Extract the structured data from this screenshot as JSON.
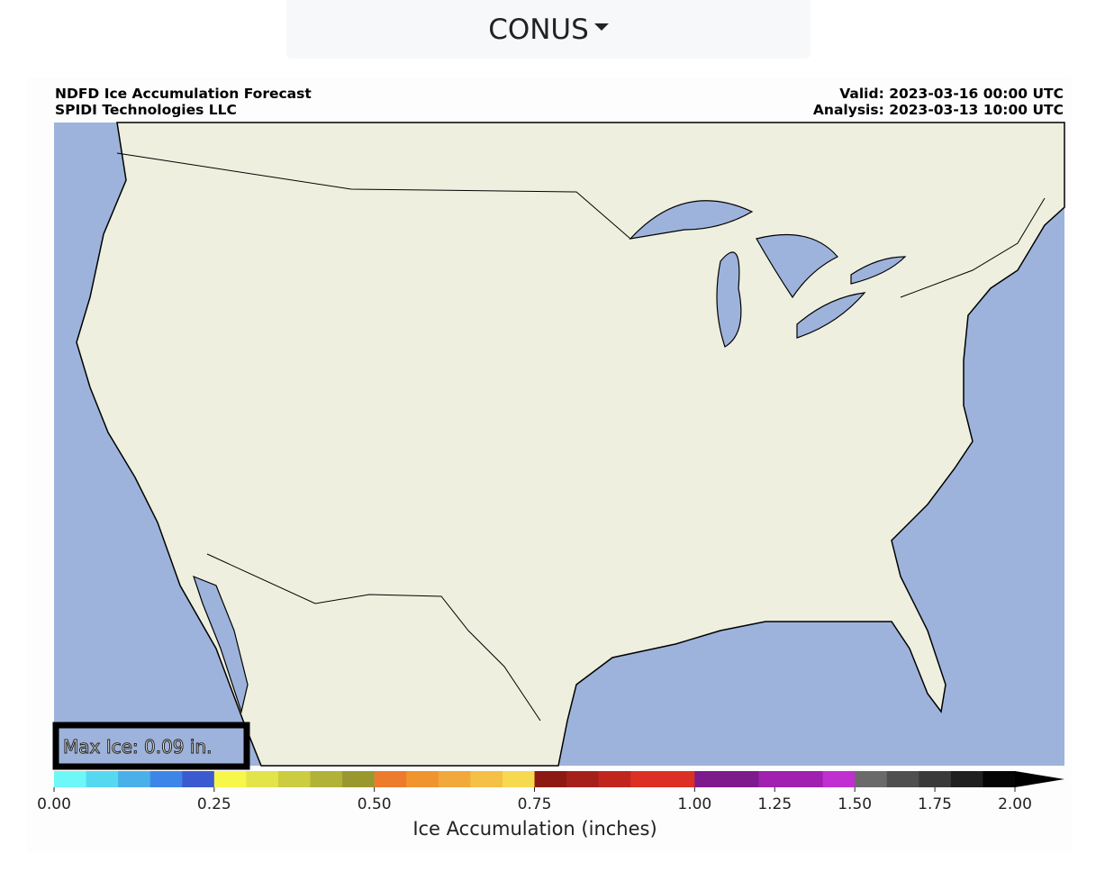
{
  "dropdown": {
    "label": "CONUS"
  },
  "header": {
    "title": "NDFD Ice Accumulation Forecast",
    "credit": "SPIDI Technologies LLC",
    "valid": "Valid: 2023-03-16 00:00 UTC",
    "analysis": "Analysis: 2023-03-13 10:00 UTC"
  },
  "map": {
    "annotation": "Max Ice: 0.09 in."
  },
  "colorbar": {
    "label": "Ice Accumulation (inches)",
    "bounds": [
      0,
      0.05,
      0.1,
      0.15,
      0.2,
      0.25,
      0.3,
      0.35,
      0.4,
      0.45,
      0.5,
      0.55,
      0.6,
      0.65,
      0.7,
      0.75,
      0.8,
      0.85,
      0.9,
      0.95,
      1.0,
      1.1,
      1.2,
      1.3,
      1.4,
      1.5,
      1.6,
      1.7,
      1.8,
      1.9,
      2.0
    ],
    "colors": [
      "#6ef7f7",
      "#56d9f0",
      "#4ab0ea",
      "#3d86e8",
      "#3c5ad0",
      "#f7f74a",
      "#e3e34a",
      "#cccc40",
      "#b1b238",
      "#98982e",
      "#ed7b2e",
      "#f0942f",
      "#f2a83a",
      "#f4c045",
      "#f7d94f",
      "#8c1a12",
      "#a6201a",
      "#c0261e",
      "#dc3024",
      "#dc3024",
      "#7d1a8c",
      "#7d1a8c",
      "#a020b0",
      "#a020b0",
      "#c030d0",
      "#6a6a6a",
      "#4f4f4f",
      "#3a3a3a",
      "#202020",
      "#050505"
    ],
    "extend_color": "#000000",
    "ticks": [
      {
        "value": 0,
        "label": "0.00"
      },
      0.25,
      {
        "value": 0.5,
        "label": "0.50"
      },
      0.75,
      {
        "value": 1,
        "label": "1.00"
      },
      1.25,
      {
        "value": 1.5,
        "label": "1.50"
      },
      1.75,
      {
        "value": 2,
        "label": "2.00"
      }
    ]
  }
}
